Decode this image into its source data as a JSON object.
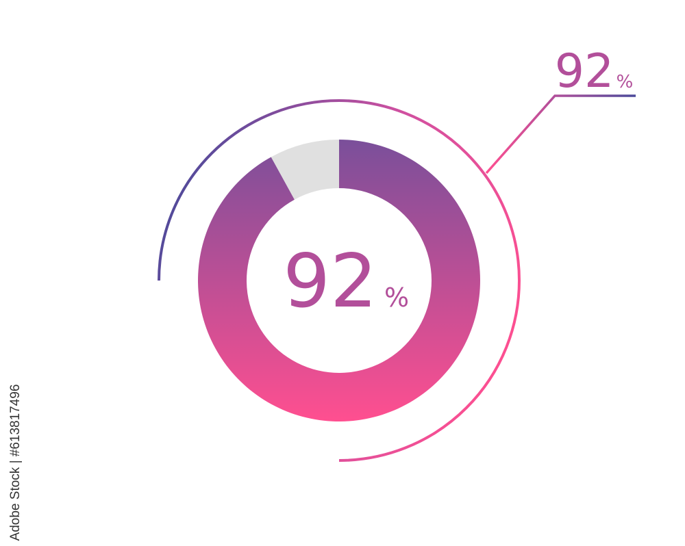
{
  "chart_data": {
    "type": "pie",
    "variant": "donut",
    "values": [
      92,
      8
    ],
    "center_label": {
      "value": "92",
      "unit": "%"
    },
    "callout_label": {
      "value": "92",
      "unit": "%"
    },
    "colors": {
      "filled_top": "#7a4f9a",
      "filled_bottom": "#ff4f90",
      "remainder": "#e0e0e0",
      "text": "#b24f9a",
      "arc_start": "#4a4a9a",
      "arc_mid": "#ff4f90",
      "arc_end": "#b24f9a"
    }
  },
  "credit": "Adobe Stock | #613817496"
}
